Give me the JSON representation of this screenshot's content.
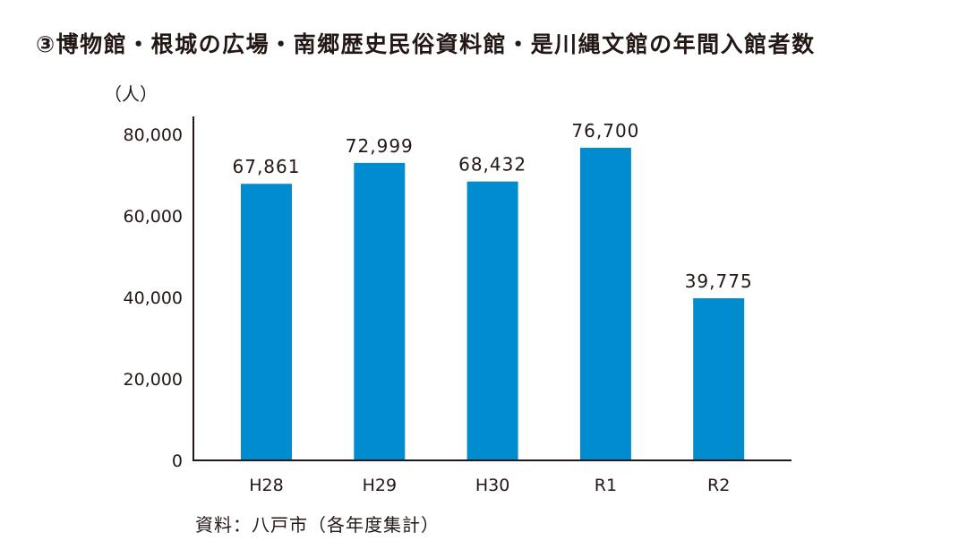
{
  "chart_data": {
    "type": "bar",
    "title": "③博物館・根城の広場・南郷歴史民俗資料館・是川縄文館の年間入館者数",
    "ylabel": "（人）",
    "xlabel": "",
    "categories": [
      "H28",
      "H29",
      "H30",
      "R1",
      "R2"
    ],
    "values": [
      67861,
      72999,
      68432,
      76700,
      39775
    ],
    "data_labels": [
      "67,861",
      "72,999",
      "68,432",
      "76,700",
      "39,775"
    ],
    "ylim": [
      0,
      80000
    ],
    "yticks": [
      0,
      20000,
      40000,
      60000,
      80000
    ],
    "ytick_labels": [
      "0",
      "20,000",
      "40,000",
      "60,000",
      "80,000"
    ],
    "grid": false,
    "bar_color": "#008ccf",
    "source": "資料：八戸市（各年度集計）"
  }
}
